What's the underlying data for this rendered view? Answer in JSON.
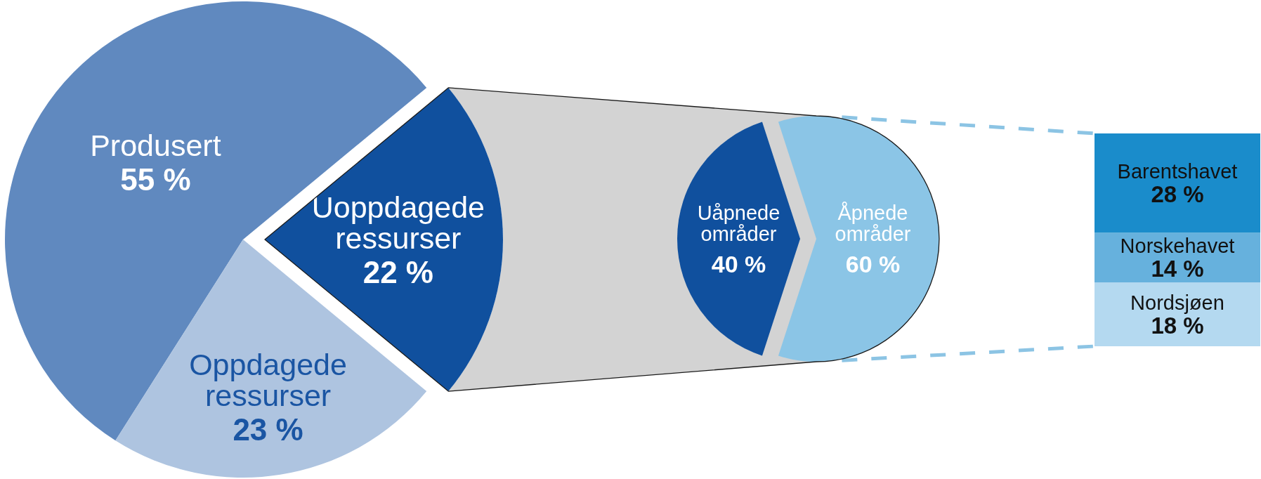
{
  "chart_data": [
    {
      "type": "pie",
      "categories": [
        "Produsert",
        "Oppdagede ressurser",
        "Uoppdagede ressurser"
      ],
      "values": [
        55,
        23,
        22
      ],
      "colors": [
        "#6089bf",
        "#aec4e0",
        "#10509e"
      ],
      "value_labels": [
        "55 %",
        "23 %",
        "22 %"
      ]
    },
    {
      "type": "pie",
      "categories": [
        "Uåpnede områder",
        "Åpnede områder"
      ],
      "values": [
        40,
        60
      ],
      "colors": [
        "#10509e",
        "#8bc5e6"
      ],
      "value_labels": [
        "40 %",
        "60 %"
      ]
    },
    {
      "type": "bar",
      "stacked": true,
      "categories": [
        null
      ],
      "series": [
        {
          "name": "Nordsjøen",
          "color": "#b4d9f0",
          "values": [
            18
          ],
          "value_labels": [
            "18 %"
          ]
        },
        {
          "name": "Norskehavet",
          "color": "#66b1dd",
          "values": [
            14
          ],
          "value_labels": [
            "14 %"
          ]
        },
        {
          "name": "Barentshavet",
          "color": "#1a8ccb",
          "values": [
            28
          ],
          "value_labels": [
            "28 %"
          ]
        }
      ]
    }
  ]
}
